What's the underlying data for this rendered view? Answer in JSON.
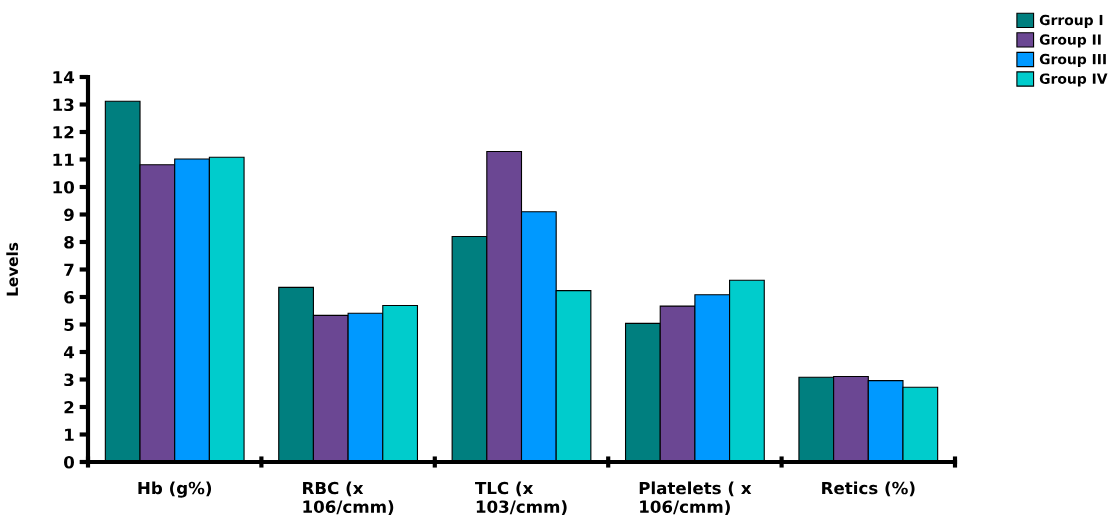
{
  "chart_data": {
    "type": "bar",
    "ylabel": "Levels",
    "categories": [
      "Hb (g%)",
      "RBC (x\n106/cmm)",
      "TLC (x\n103/cmm)",
      "Platelets ( x\n106/cmm)",
      "Retics (%)"
    ],
    "series": [
      {
        "name": "Grroup I",
        "color": "#007f7f",
        "values": [
          13.12,
          6.35,
          8.2,
          5.04,
          3.08
        ]
      },
      {
        "name": "Group II",
        "color": "#6b4793",
        "values": [
          10.81,
          5.33,
          11.29,
          5.67,
          3.11
        ]
      },
      {
        "name": "Group III",
        "color": "#0099ff",
        "values": [
          11.02,
          5.41,
          9.1,
          6.08,
          2.96
        ]
      },
      {
        "name": "Group IV",
        "color": "#00cccc",
        "values": [
          11.08,
          5.69,
          6.23,
          6.61,
          2.72
        ]
      }
    ],
    "ylim": [
      0,
      14
    ],
    "yticks": [
      0,
      1,
      2,
      3,
      4,
      5,
      6,
      7,
      8,
      9,
      10,
      11,
      12,
      13,
      14
    ],
    "grid": false,
    "legend": "top right"
  }
}
